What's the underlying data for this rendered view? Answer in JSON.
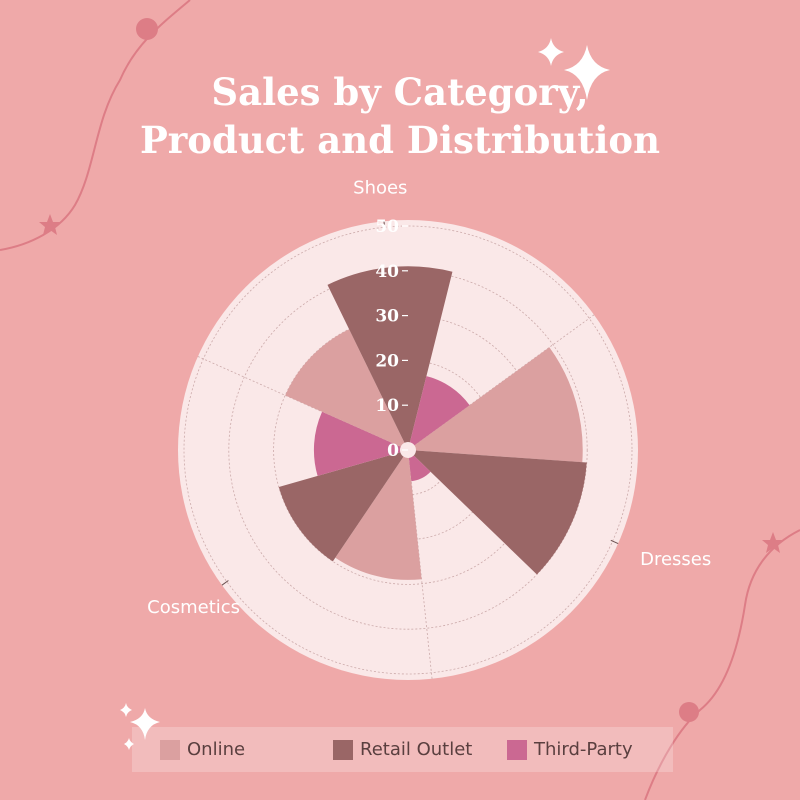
{
  "title_line1": "Sales by Category,",
  "title_line2": "Product and Distribution",
  "colors": {
    "background": "#efa9a9",
    "plot_background": "#fae8e8",
    "deco_line": "#dd7d86",
    "sparkle": "#ffffff"
  },
  "chart_data": {
    "type": "polar-bar",
    "title": "Sales by Category, Product and Distribution",
    "categories": [
      "Dresses",
      "Cosmetics",
      "Shoes"
    ],
    "radial_ticks": [
      0,
      10,
      20,
      30,
      40,
      50
    ],
    "rlim": [
      0,
      50
    ],
    "legend_position": "bottom",
    "series": [
      {
        "name": "Online",
        "color": "#dba0a0",
        "values": [
          39,
          29,
          30
        ]
      },
      {
        "name": "Retail Outlet",
        "color": "#9a6666",
        "values": [
          40,
          30,
          41
        ]
      },
      {
        "name": "Third-Party",
        "color": "#cb6892",
        "values": [
          7,
          21,
          17
        ]
      }
    ]
  }
}
